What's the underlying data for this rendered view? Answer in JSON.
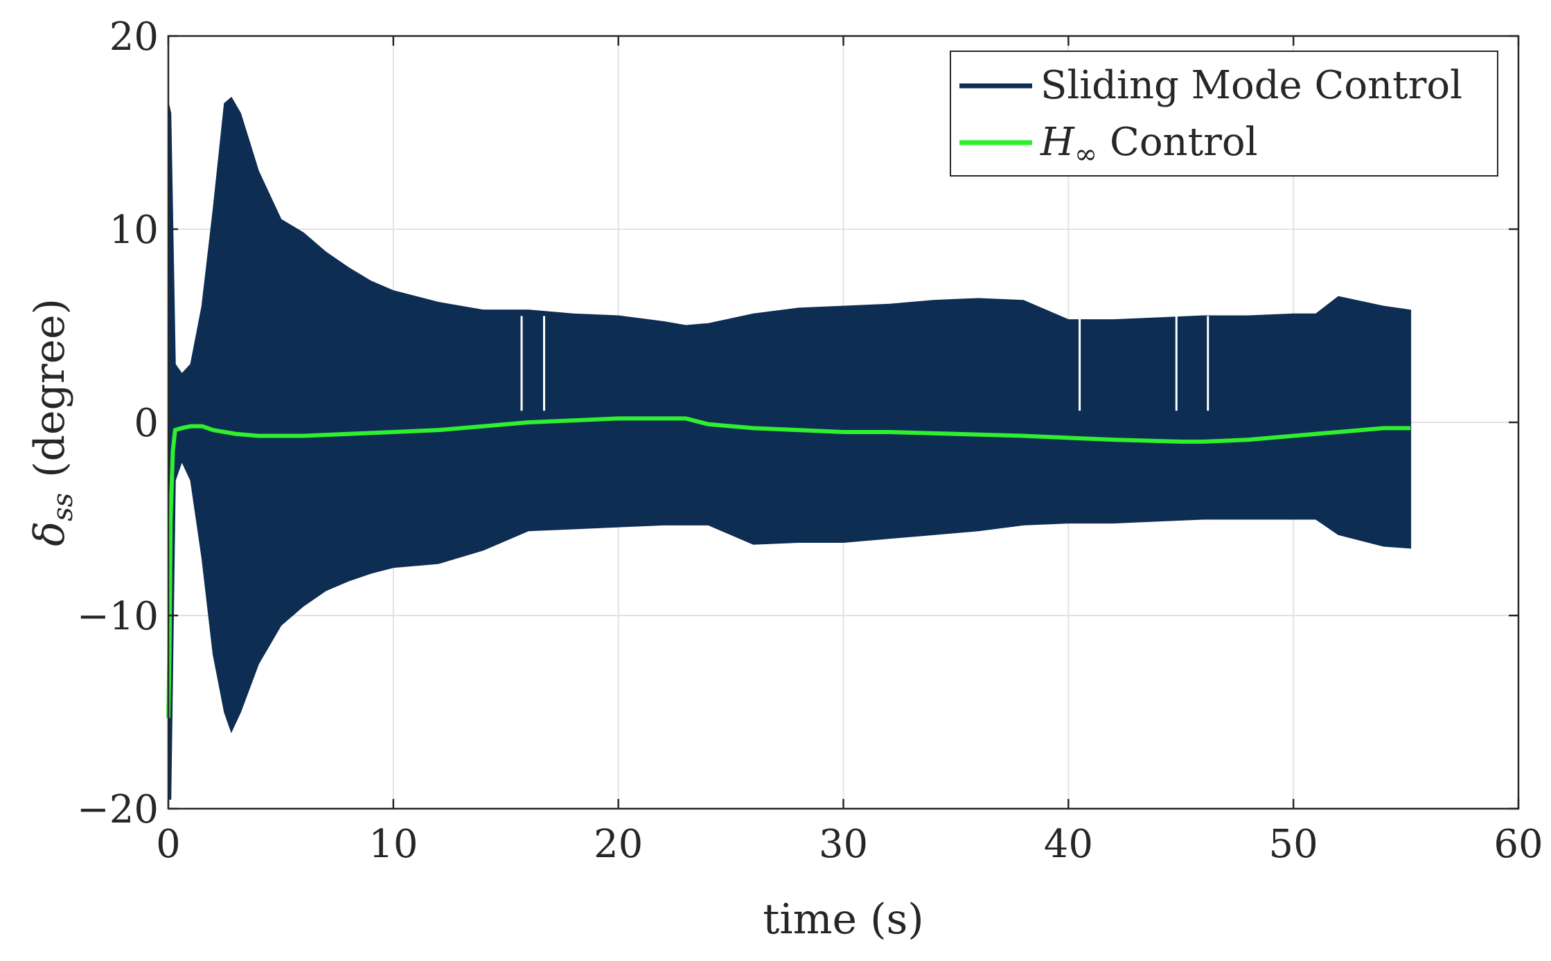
{
  "chart_data": {
    "type": "line",
    "title": "",
    "xlabel": "time (s)",
    "ylabel_symbol": "δ",
    "ylabel_subscript": "ss",
    "ylabel_unit": "(degree)",
    "xlim": [
      0,
      60
    ],
    "ylim": [
      -20,
      20
    ],
    "xticks": [
      0,
      10,
      20,
      30,
      40,
      50,
      60
    ],
    "yticks": [
      -20,
      -10,
      0,
      10,
      20
    ],
    "xtick_labels": [
      "0",
      "10",
      "20",
      "30",
      "40",
      "50",
      "60"
    ],
    "ytick_labels": [
      "−20",
      "−10",
      "0",
      "10",
      "20"
    ],
    "grid": true,
    "legend_position": "top-right",
    "series": [
      {
        "name": "Sliding Mode Control",
        "legend_label": "Sliding Mode Control",
        "color": "#0e2d52",
        "style": "band",
        "time": [
          0,
          0.1,
          0.3,
          0.6,
          1.0,
          1.5,
          2.0,
          2.5,
          2.8,
          3.2,
          4,
          5,
          6,
          7,
          8,
          9,
          10,
          12,
          14,
          16,
          18,
          20,
          22,
          23,
          24,
          26,
          28,
          30,
          32,
          34,
          36,
          38,
          40,
          42,
          44,
          46,
          48,
          50,
          51,
          52,
          54,
          55.2
        ],
        "upper": [
          16.5,
          16,
          3,
          2.5,
          3,
          6,
          11,
          16.5,
          16.8,
          16,
          13,
          10.5,
          9.8,
          8.8,
          8,
          7.3,
          6.8,
          6.2,
          5.8,
          5.8,
          5.6,
          5.5,
          5.2,
          5.0,
          5.1,
          5.6,
          5.9,
          6.0,
          6.1,
          6.3,
          6.4,
          6.3,
          5.3,
          5.3,
          5.4,
          5.5,
          5.5,
          5.6,
          5.6,
          6.5,
          6.0,
          5.8
        ],
        "lower": [
          -19.5,
          -19.5,
          -3,
          -2,
          -3,
          -7,
          -12,
          -15,
          -16,
          -15,
          -12.5,
          -10.5,
          -9.5,
          -8.7,
          -8.2,
          -7.8,
          -7.5,
          -7.3,
          -6.6,
          -5.6,
          -5.5,
          -5.4,
          -5.3,
          -5.3,
          -5.3,
          -6.3,
          -6.2,
          -6.2,
          -6.0,
          -5.8,
          -5.6,
          -5.3,
          -5.2,
          -5.2,
          -5.1,
          -5.0,
          -5.0,
          -5.0,
          -5.0,
          -5.8,
          -6.4,
          -6.5
        ]
      },
      {
        "name": "H∞ Control",
        "legend_label_main": "H",
        "legend_label_sub": "∞",
        "legend_label_rest": " Control",
        "color": "#2ef02e",
        "style": "line",
        "time": [
          0,
          0.05,
          0.1,
          0.2,
          0.3,
          0.6,
          1.0,
          1.5,
          2.0,
          3.0,
          4.0,
          6,
          8,
          10,
          12,
          14,
          16,
          18,
          20,
          22,
          23,
          24,
          26,
          28,
          30,
          32,
          35,
          38,
          40,
          42,
          45,
          46,
          48,
          50,
          52,
          54,
          55.2
        ],
        "values": [
          -15.3,
          -12,
          -5,
          -1.5,
          -0.4,
          -0.3,
          -0.2,
          -0.2,
          -0.4,
          -0.6,
          -0.7,
          -0.7,
          -0.6,
          -0.5,
          -0.4,
          -0.2,
          0.0,
          0.1,
          0.2,
          0.2,
          0.2,
          -0.1,
          -0.3,
          -0.4,
          -0.5,
          -0.5,
          -0.6,
          -0.7,
          -0.8,
          -0.9,
          -1.0,
          -1.0,
          -0.9,
          -0.7,
          -0.5,
          -0.3,
          -0.3
        ]
      }
    ]
  }
}
